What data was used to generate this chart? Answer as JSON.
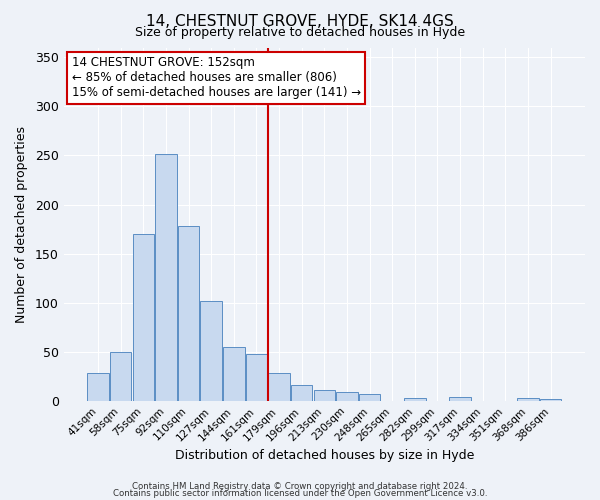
{
  "title": "14, CHESTNUT GROVE, HYDE, SK14 4GS",
  "subtitle": "Size of property relative to detached houses in Hyde",
  "xlabel": "Distribution of detached houses by size in Hyde",
  "ylabel": "Number of detached properties",
  "bin_labels": [
    "41sqm",
    "58sqm",
    "75sqm",
    "92sqm",
    "110sqm",
    "127sqm",
    "144sqm",
    "161sqm",
    "179sqm",
    "196sqm",
    "213sqm",
    "230sqm",
    "248sqm",
    "265sqm",
    "282sqm",
    "299sqm",
    "317sqm",
    "334sqm",
    "351sqm",
    "368sqm",
    "386sqm"
  ],
  "bar_values": [
    28,
    50,
    170,
    252,
    178,
    102,
    55,
    48,
    28,
    16,
    11,
    9,
    7,
    0,
    3,
    0,
    4,
    0,
    0,
    3,
    2
  ],
  "bar_color": "#c8d9ef",
  "bar_edge_color": "#5b8ec4",
  "vline_x_index": 7.5,
  "vline_color": "#cc0000",
  "ylim": [
    0,
    360
  ],
  "yticks": [
    0,
    50,
    100,
    150,
    200,
    250,
    300,
    350
  ],
  "annotation_title": "14 CHESTNUT GROVE: 152sqm",
  "annotation_line1": "← 85% of detached houses are smaller (806)",
  "annotation_line2": "15% of semi-detached houses are larger (141) →",
  "annotation_box_color": "#ffffff",
  "annotation_box_edge": "#cc0000",
  "footer1": "Contains HM Land Registry data © Crown copyright and database right 2024.",
  "footer2": "Contains public sector information licensed under the Open Government Licence v3.0.",
  "background_color": "#eef2f8",
  "plot_background": "#eef2f8"
}
